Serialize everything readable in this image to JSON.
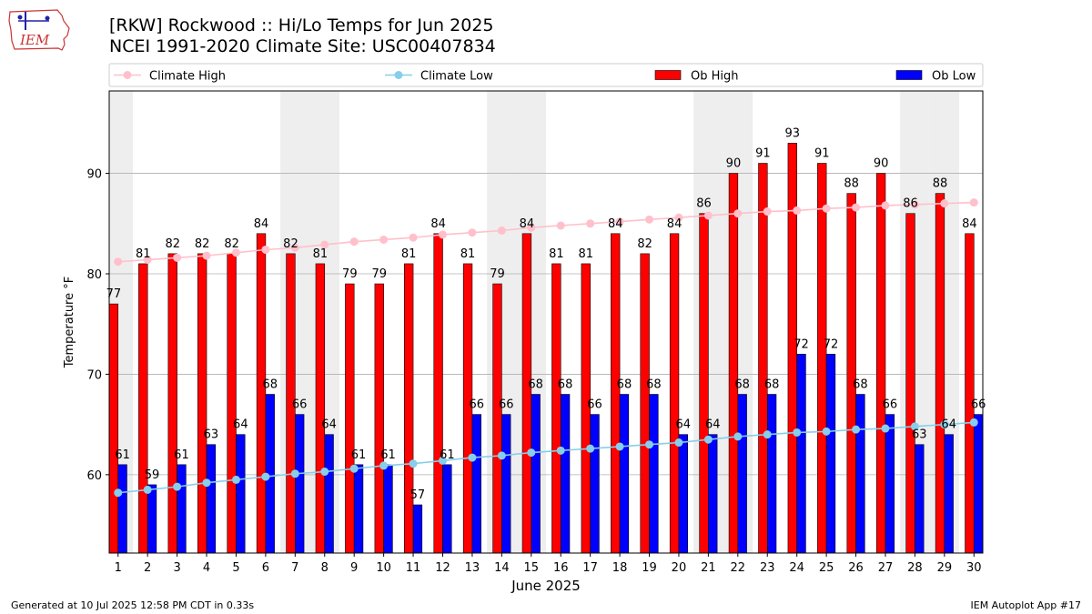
{
  "header": {
    "title_line1": "[RKW] Rockwood :: Hi/Lo Temps for Jun 2025",
    "title_line2": "NCEI 1991-2020 Climate Site: USC00407834",
    "logo_text": "IEM"
  },
  "footer": {
    "generated": "Generated at 10 Jul 2025 12:58 PM CDT in 0.33s",
    "app": "IEM Autoplot App #17"
  },
  "colors": {
    "ob_high": "#ff0000",
    "ob_low": "#0000ff",
    "climate_high": "#ffc0cb",
    "climate_low": "#87ceeb",
    "weekend_shade": "#eeeeee",
    "grid": "#b0b0b0"
  },
  "chart_data": {
    "type": "bar",
    "title": "[RKW] Rockwood :: Hi/Lo Temps for Jun 2025",
    "xlabel": "June 2025",
    "ylabel": "Temperature °F",
    "ylim": [
      52.2,
      98.2
    ],
    "yticks": [
      60,
      70,
      80,
      90
    ],
    "grid": true,
    "legend_position": "top, above plot",
    "categories": [
      "1",
      "2",
      "3",
      "4",
      "5",
      "6",
      "7",
      "8",
      "9",
      "10",
      "11",
      "12",
      "13",
      "14",
      "15",
      "16",
      "17",
      "18",
      "19",
      "20",
      "21",
      "22",
      "23",
      "24",
      "25",
      "26",
      "27",
      "28",
      "29",
      "30"
    ],
    "shaded_days": [
      1,
      7,
      8,
      14,
      15,
      21,
      22,
      28,
      29
    ],
    "series": [
      {
        "name": "Ob High",
        "kind": "bar",
        "values": [
          77,
          81,
          82,
          82,
          82,
          84,
          82,
          81,
          79,
          79,
          81,
          84,
          81,
          79,
          84,
          81,
          81,
          84,
          82,
          84,
          86,
          90,
          91,
          93,
          91,
          88,
          90,
          86,
          88,
          84
        ]
      },
      {
        "name": "Ob Low",
        "kind": "bar",
        "values": [
          61,
          59,
          61,
          63,
          64,
          68,
          66,
          64,
          61,
          61,
          57,
          61,
          66,
          66,
          68,
          68,
          66,
          68,
          68,
          64,
          64,
          68,
          68,
          72,
          72,
          68,
          66,
          63,
          64,
          66
        ]
      },
      {
        "name": "Climate High",
        "kind": "line",
        "values": [
          81.2,
          81.4,
          81.6,
          81.8,
          82.1,
          82.4,
          82.6,
          82.9,
          83.2,
          83.4,
          83.6,
          83.9,
          84.1,
          84.3,
          84.6,
          84.8,
          85.0,
          85.2,
          85.4,
          85.6,
          85.8,
          86.0,
          86.2,
          86.3,
          86.5,
          86.6,
          86.8,
          86.9,
          87.0,
          87.1
        ]
      },
      {
        "name": "Climate Low",
        "kind": "line",
        "values": [
          58.2,
          58.5,
          58.8,
          59.2,
          59.5,
          59.8,
          60.1,
          60.3,
          60.6,
          60.9,
          61.1,
          61.4,
          61.7,
          61.9,
          62.2,
          62.4,
          62.6,
          62.8,
          63.0,
          63.2,
          63.5,
          63.8,
          64.0,
          64.2,
          64.3,
          64.5,
          64.6,
          64.8,
          65.0,
          65.2
        ]
      }
    ]
  }
}
